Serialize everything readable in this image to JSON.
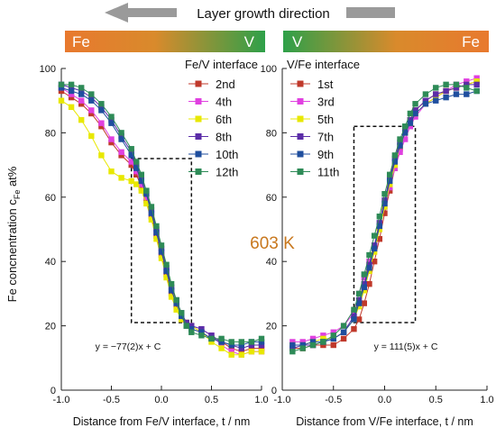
{
  "header": {
    "direction_label": "Layer growth direction",
    "left_bar": {
      "start_label": "Fe",
      "end_label": "V"
    },
    "right_bar": {
      "start_label": "V",
      "end_label": "Fe"
    }
  },
  "colors": {
    "orange": "#e8792e",
    "green": "#2ea049",
    "arrow_gray": "#9a9a9a",
    "temp_text": "#c8781e"
  },
  "temperature_label": "603 K",
  "y_axis_label": "Fe concnentration c",
  "y_axis_label_sub": "Fe",
  "y_axis_label_unit": " at%",
  "chart_data": [
    {
      "type": "line",
      "panel": "left",
      "legend_title": "Fe/V interface",
      "xlabel": "Distance from Fe/V interface, t / nm",
      "xlim": [
        -1.0,
        1.0
      ],
      "ylim": [
        0,
        100
      ],
      "xticks": [
        "-1.0",
        "-0.5",
        "0.0",
        "0.5",
        "1.0"
      ],
      "yticks": [
        "0",
        "20",
        "40",
        "60",
        "80",
        "100"
      ],
      "fit_label": "y = −77(2)x + C",
      "series": [
        {
          "name": "2nd",
          "color": "#c0392b",
          "x": [
            -1.0,
            -0.9,
            -0.8,
            -0.7,
            -0.6,
            -0.5,
            -0.4,
            -0.3,
            -0.25,
            -0.2,
            -0.15,
            -0.1,
            -0.05,
            0.0,
            0.05,
            0.1,
            0.15,
            0.2,
            0.25,
            0.3,
            0.4,
            0.5,
            0.6,
            0.7,
            0.8,
            0.9,
            1.0
          ],
          "y": [
            93,
            91,
            89,
            86,
            82,
            77,
            73,
            70,
            67,
            63,
            59,
            54,
            48,
            42,
            36,
            30,
            26,
            22,
            20,
            19,
            18,
            16,
            15,
            13,
            12,
            13,
            13
          ]
        },
        {
          "name": "4th",
          "color": "#e040e0",
          "x": [
            -1.0,
            -0.9,
            -0.8,
            -0.7,
            -0.6,
            -0.5,
            -0.4,
            -0.3,
            -0.25,
            -0.2,
            -0.15,
            -0.1,
            -0.05,
            0.0,
            0.05,
            0.1,
            0.15,
            0.2,
            0.25,
            0.3,
            0.4,
            0.5,
            0.6,
            0.7,
            0.8,
            0.9,
            1.0
          ],
          "y": [
            94,
            92,
            90,
            87,
            83,
            78,
            74,
            71,
            68,
            64,
            60,
            55,
            49,
            43,
            37,
            31,
            27,
            23,
            21,
            20,
            19,
            17,
            14,
            12,
            11,
            12,
            12
          ]
        },
        {
          "name": "6th",
          "color": "#e8e800",
          "x": [
            -1.0,
            -0.9,
            -0.8,
            -0.7,
            -0.6,
            -0.5,
            -0.4,
            -0.3,
            -0.25,
            -0.2,
            -0.15,
            -0.1,
            -0.05,
            0.0,
            0.05,
            0.1,
            0.15,
            0.2,
            0.25,
            0.3,
            0.4,
            0.5,
            0.6,
            0.7,
            0.8,
            0.9,
            1.0
          ],
          "y": [
            90,
            88,
            84,
            79,
            73,
            68,
            66,
            65,
            64,
            62,
            58,
            53,
            47,
            41,
            35,
            29,
            25,
            22,
            21,
            20,
            18,
            15,
            13,
            11,
            11,
            12,
            12
          ]
        },
        {
          "name": "8th",
          "color": "#5b2da8",
          "x": [
            -1.0,
            -0.9,
            -0.8,
            -0.7,
            -0.6,
            -0.5,
            -0.4,
            -0.3,
            -0.25,
            -0.2,
            -0.15,
            -0.1,
            -0.05,
            0.0,
            0.05,
            0.1,
            0.15,
            0.2,
            0.25,
            0.3,
            0.4,
            0.5,
            0.6,
            0.7,
            0.8,
            0.9,
            1.0
          ],
          "y": [
            95,
            94,
            93,
            91,
            88,
            84,
            79,
            74,
            70,
            66,
            62,
            56,
            50,
            44,
            38,
            32,
            28,
            24,
            21,
            20,
            19,
            17,
            15,
            14,
            13,
            14,
            14
          ]
        },
        {
          "name": "10th",
          "color": "#1f4e9e",
          "x": [
            -1.0,
            -0.9,
            -0.8,
            -0.7,
            -0.6,
            -0.5,
            -0.4,
            -0.3,
            -0.25,
            -0.2,
            -0.15,
            -0.1,
            -0.05,
            0.0,
            0.05,
            0.1,
            0.15,
            0.2,
            0.25,
            0.3,
            0.4,
            0.5,
            0.6,
            0.7,
            0.8,
            0.9,
            1.0
          ],
          "y": [
            94,
            93,
            92,
            90,
            87,
            83,
            78,
            73,
            69,
            65,
            61,
            55,
            49,
            43,
            37,
            31,
            27,
            23,
            20,
            19,
            18,
            16,
            15,
            14,
            14,
            15,
            15
          ]
        },
        {
          "name": "12th",
          "color": "#2e8b57",
          "x": [
            -1.0,
            -0.9,
            -0.8,
            -0.7,
            -0.6,
            -0.5,
            -0.4,
            -0.3,
            -0.25,
            -0.2,
            -0.15,
            -0.1,
            -0.05,
            0.0,
            0.05,
            0.1,
            0.15,
            0.2,
            0.25,
            0.3,
            0.4,
            0.5,
            0.6,
            0.7,
            0.8,
            0.9,
            1.0
          ],
          "y": [
            95,
            95,
            94,
            92,
            89,
            85,
            80,
            75,
            71,
            67,
            62,
            57,
            51,
            45,
            39,
            33,
            28,
            24,
            20,
            18,
            17,
            16,
            16,
            15,
            15,
            15,
            16
          ]
        }
      ]
    },
    {
      "type": "line",
      "panel": "right",
      "legend_title": "V/Fe interface",
      "xlabel": "Distance from V/Fe interface, t / nm",
      "xlim": [
        -1.0,
        1.0
      ],
      "ylim": [
        0,
        100
      ],
      "xticks": [
        "-1.0",
        "-0.5",
        "0.0",
        "0.5",
        "1.0"
      ],
      "yticks": [
        "0",
        "20",
        "40",
        "60",
        "80",
        "100"
      ],
      "fit_label": "y = 111(5)x + C",
      "series": [
        {
          "name": "1st",
          "color": "#c0392b",
          "x": [
            -0.9,
            -0.8,
            -0.7,
            -0.6,
            -0.5,
            -0.4,
            -0.3,
            -0.25,
            -0.2,
            -0.15,
            -0.1,
            -0.05,
            0.0,
            0.05,
            0.1,
            0.15,
            0.2,
            0.25,
            0.3,
            0.4,
            0.5,
            0.6,
            0.7,
            0.8,
            0.9
          ],
          "y": [
            13,
            13,
            14,
            14,
            14,
            16,
            19,
            22,
            27,
            33,
            40,
            47,
            55,
            62,
            69,
            75,
            80,
            84,
            87,
            90,
            92,
            93,
            94,
            95,
            96
          ]
        },
        {
          "name": "3rd",
          "color": "#e040e0",
          "x": [
            -0.9,
            -0.8,
            -0.7,
            -0.6,
            -0.5,
            -0.4,
            -0.3,
            -0.25,
            -0.2,
            -0.15,
            -0.1,
            -0.05,
            0.0,
            0.05,
            0.1,
            0.15,
            0.2,
            0.25,
            0.3,
            0.4,
            0.5,
            0.6,
            0.7,
            0.8,
            0.9
          ],
          "y": [
            15,
            15,
            16,
            17,
            18,
            20,
            24,
            30,
            35,
            40,
            45,
            51,
            57,
            63,
            69,
            74,
            78,
            82,
            85,
            89,
            91,
            93,
            95,
            96,
            97
          ]
        },
        {
          "name": "5th",
          "color": "#e8e800",
          "x": [
            -0.9,
            -0.8,
            -0.7,
            -0.6,
            -0.5,
            -0.4,
            -0.3,
            -0.25,
            -0.2,
            -0.15,
            -0.1,
            -0.05,
            0.0,
            0.05,
            0.1,
            0.15,
            0.2,
            0.25,
            0.3,
            0.4,
            0.5,
            0.6,
            0.7,
            0.8,
            0.9
          ],
          "y": [
            14,
            14,
            15,
            16,
            16,
            18,
            22,
            26,
            31,
            37,
            43,
            50,
            57,
            64,
            70,
            76,
            80,
            83,
            86,
            89,
            91,
            93,
            94,
            95,
            96
          ]
        },
        {
          "name": "7th",
          "color": "#5b2da8",
          "x": [
            -0.9,
            -0.8,
            -0.7,
            -0.6,
            -0.5,
            -0.4,
            -0.3,
            -0.25,
            -0.2,
            -0.15,
            -0.1,
            -0.05,
            0.0,
            0.05,
            0.1,
            0.15,
            0.2,
            0.25,
            0.3,
            0.4,
            0.5,
            0.6,
            0.7,
            0.8,
            0.9
          ],
          "y": [
            13,
            14,
            14,
            15,
            16,
            18,
            23,
            28,
            33,
            39,
            45,
            52,
            59,
            66,
            72,
            77,
            81,
            84,
            87,
            90,
            92,
            93,
            94,
            95,
            95
          ]
        },
        {
          "name": "9th",
          "color": "#1f4e9e",
          "x": [
            -0.9,
            -0.8,
            -0.7,
            -0.6,
            -0.5,
            -0.4,
            -0.3,
            -0.25,
            -0.2,
            -0.15,
            -0.1,
            -0.05,
            0.0,
            0.05,
            0.1,
            0.15,
            0.2,
            0.25,
            0.3,
            0.4,
            0.5,
            0.6,
            0.7,
            0.8,
            0.9
          ],
          "y": [
            14,
            14,
            15,
            15,
            16,
            18,
            22,
            27,
            32,
            38,
            44,
            51,
            58,
            65,
            71,
            76,
            80,
            83,
            86,
            89,
            90,
            91,
            92,
            92,
            93
          ]
        },
        {
          "name": "11th",
          "color": "#2e8b57",
          "x": [
            -0.9,
            -0.8,
            -0.7,
            -0.6,
            -0.5,
            -0.4,
            -0.3,
            -0.25,
            -0.2,
            -0.15,
            -0.1,
            -0.05,
            0.0,
            0.05,
            0.1,
            0.15,
            0.2,
            0.25,
            0.3,
            0.4,
            0.5,
            0.6,
            0.7,
            0.8,
            0.9
          ],
          "y": [
            12,
            13,
            14,
            15,
            17,
            20,
            25,
            30,
            36,
            42,
            48,
            54,
            61,
            67,
            73,
            78,
            82,
            86,
            89,
            92,
            94,
            95,
            95,
            94,
            93
          ]
        }
      ]
    }
  ]
}
